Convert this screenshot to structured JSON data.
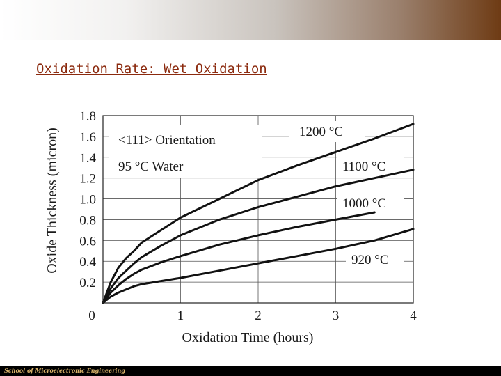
{
  "slide": {
    "title": "Oxidation Rate: Wet Oxidation",
    "footer": "School of Microelectronic Engineering"
  },
  "colors": {
    "title": "#8b2a0e",
    "footer_bg": "#000000",
    "footer_text": "#d9b36a",
    "band_right": "#6e3b14"
  },
  "chart_data": {
    "type": "line",
    "title": "",
    "xlabel": "Oxidation Time (hours)",
    "ylabel": "Oxide Thickness (micron)",
    "xlim": [
      0,
      4
    ],
    "ylim": [
      0,
      1.8
    ],
    "xticks": [
      0,
      1,
      2,
      3,
      4
    ],
    "yticks": [
      0.2,
      0.4,
      0.6,
      0.8,
      1.0,
      1.2,
      1.4,
      1.6,
      1.8
    ],
    "ytick_labels": [
      "0.2",
      "0.4",
      "0.6",
      "0.8",
      "1.0",
      "1.2",
      "1.4",
      "1.6",
      "1.8"
    ],
    "grid": true,
    "annotations": [
      "<111> Orientation",
      "95 °C Water"
    ],
    "series": [
      {
        "name": "1200 °C",
        "x": [
          0,
          0.1,
          0.2,
          0.3,
          0.4,
          0.5,
          0.75,
          1.0,
          1.5,
          2.0,
          2.5,
          3.0,
          3.5,
          4.0
        ],
        "y": [
          0,
          0.2,
          0.34,
          0.43,
          0.5,
          0.58,
          0.7,
          0.82,
          1.0,
          1.18,
          1.32,
          1.45,
          1.58,
          1.72
        ]
      },
      {
        "name": "1100 °C",
        "x": [
          0,
          0.1,
          0.2,
          0.3,
          0.4,
          0.5,
          0.75,
          1.0,
          1.5,
          2.0,
          2.5,
          3.0,
          3.5,
          4.0
        ],
        "y": [
          0,
          0.14,
          0.24,
          0.31,
          0.38,
          0.44,
          0.55,
          0.65,
          0.8,
          0.92,
          1.02,
          1.12,
          1.2,
          1.28
        ]
      },
      {
        "name": "1000 °C",
        "x": [
          0,
          0.1,
          0.2,
          0.3,
          0.4,
          0.5,
          0.75,
          1.0,
          1.5,
          2.0,
          2.5,
          3.0,
          3.5
        ],
        "y": [
          0,
          0.1,
          0.17,
          0.23,
          0.28,
          0.32,
          0.39,
          0.45,
          0.56,
          0.65,
          0.73,
          0.8,
          0.87
        ]
      },
      {
        "name": "920 °C",
        "x": [
          0,
          0.1,
          0.2,
          0.3,
          0.4,
          0.5,
          0.75,
          1.0,
          1.5,
          2.0,
          2.5,
          3.0,
          3.5,
          4.0
        ],
        "y": [
          0,
          0.06,
          0.1,
          0.13,
          0.16,
          0.18,
          0.21,
          0.24,
          0.31,
          0.38,
          0.45,
          0.52,
          0.6,
          0.71
        ]
      }
    ]
  }
}
